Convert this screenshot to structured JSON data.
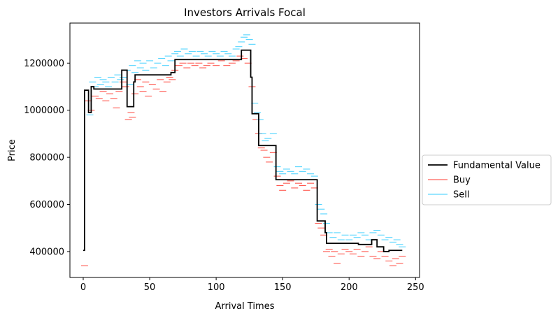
{
  "chart_data": {
    "type": "line",
    "title": "Investors Arrivals Focal",
    "xlabel": "Arrival Times",
    "ylabel": "Price",
    "xlim": [
      -10,
      253
    ],
    "ylim": [
      290000,
      1370000
    ],
    "x_ticks": [
      0,
      50,
      100,
      150,
      200,
      250
    ],
    "x_tick_labels": [
      "0",
      "50",
      "100",
      "150",
      "200",
      "250"
    ],
    "y_ticks": [
      400000,
      600000,
      800000,
      1000000,
      1200000
    ],
    "y_tick_labels": [
      "400000",
      "600000",
      "800000",
      "1000000",
      "1200000"
    ],
    "grid": false,
    "legend_position": "right, outside plot",
    "colors": {
      "fundamental": "#000000",
      "buy": "#ff3b30",
      "sell": "#33ccff"
    },
    "series": [
      {
        "name": "Fundamental Value",
        "kind": "step-line",
        "points": [
          [
            0,
            405000
          ],
          [
            1,
            1085000
          ],
          [
            3,
            1085000
          ],
          [
            4,
            990000
          ],
          [
            6,
            1100000
          ],
          [
            8,
            1090000
          ],
          [
            28,
            1090000
          ],
          [
            29,
            1170000
          ],
          [
            32,
            1170000
          ],
          [
            33,
            1015000
          ],
          [
            37,
            1015000
          ],
          [
            38,
            1120000
          ],
          [
            39,
            1150000
          ],
          [
            65,
            1150000
          ],
          [
            66,
            1160000
          ],
          [
            68,
            1160000
          ],
          [
            69,
            1215000
          ],
          [
            118,
            1215000
          ],
          [
            119,
            1255000
          ],
          [
            125,
            1255000
          ],
          [
            126,
            1140000
          ],
          [
            127,
            985000
          ],
          [
            131,
            985000
          ],
          [
            132,
            850000
          ],
          [
            144,
            850000
          ],
          [
            145,
            705000
          ],
          [
            175,
            705000
          ],
          [
            176,
            530000
          ],
          [
            181,
            530000
          ],
          [
            182,
            480000
          ],
          [
            183,
            435000
          ],
          [
            206,
            435000
          ],
          [
            207,
            430000
          ],
          [
            216,
            430000
          ],
          [
            217,
            450000
          ],
          [
            220,
            450000
          ],
          [
            221,
            420000
          ],
          [
            225,
            420000
          ],
          [
            226,
            400000
          ],
          [
            229,
            400000
          ],
          [
            230,
            405000
          ],
          [
            240,
            405000
          ]
        ]
      },
      {
        "name": "Buy",
        "kind": "dash-marks",
        "points": [
          [
            1,
            340000
          ],
          [
            4,
            1040000
          ],
          [
            6,
            1000000
          ],
          [
            9,
            1060000
          ],
          [
            12,
            1050000
          ],
          [
            15,
            1080000
          ],
          [
            17,
            1040000
          ],
          [
            20,
            1070000
          ],
          [
            23,
            1050000
          ],
          [
            25,
            1010000
          ],
          [
            27,
            1080000
          ],
          [
            30,
            1120000
          ],
          [
            32,
            1100000
          ],
          [
            34,
            960000
          ],
          [
            36,
            990000
          ],
          [
            37,
            970000
          ],
          [
            39,
            1070000
          ],
          [
            41,
            1130000
          ],
          [
            43,
            1100000
          ],
          [
            45,
            1080000
          ],
          [
            47,
            1120000
          ],
          [
            49,
            1060000
          ],
          [
            52,
            1110000
          ],
          [
            55,
            1090000
          ],
          [
            58,
            1130000
          ],
          [
            60,
            1080000
          ],
          [
            63,
            1120000
          ],
          [
            65,
            1140000
          ],
          [
            67,
            1130000
          ],
          [
            69,
            1170000
          ],
          [
            72,
            1190000
          ],
          [
            75,
            1200000
          ],
          [
            78,
            1180000
          ],
          [
            81,
            1200000
          ],
          [
            84,
            1190000
          ],
          [
            87,
            1200000
          ],
          [
            90,
            1180000
          ],
          [
            93,
            1190000
          ],
          [
            96,
            1200000
          ],
          [
            100,
            1190000
          ],
          [
            104,
            1210000
          ],
          [
            108,
            1190000
          ],
          [
            112,
            1200000
          ],
          [
            115,
            1210000
          ],
          [
            118,
            1230000
          ],
          [
            121,
            1220000
          ],
          [
            124,
            1200000
          ],
          [
            127,
            1100000
          ],
          [
            130,
            960000
          ],
          [
            132,
            900000
          ],
          [
            134,
            840000
          ],
          [
            136,
            830000
          ],
          [
            138,
            800000
          ],
          [
            140,
            780000
          ],
          [
            143,
            820000
          ],
          [
            146,
            720000
          ],
          [
            148,
            680000
          ],
          [
            150,
            660000
          ],
          [
            153,
            690000
          ],
          [
            156,
            700000
          ],
          [
            159,
            670000
          ],
          [
            162,
            690000
          ],
          [
            165,
            680000
          ],
          [
            168,
            660000
          ],
          [
            171,
            690000
          ],
          [
            174,
            670000
          ],
          [
            177,
            520000
          ],
          [
            179,
            500000
          ],
          [
            181,
            470000
          ],
          [
            183,
            400000
          ],
          [
            185,
            410000
          ],
          [
            187,
            380000
          ],
          [
            189,
            400000
          ],
          [
            191,
            350000
          ],
          [
            194,
            390000
          ],
          [
            197,
            410000
          ],
          [
            200,
            400000
          ],
          [
            203,
            390000
          ],
          [
            206,
            410000
          ],
          [
            209,
            380000
          ],
          [
            212,
            400000
          ],
          [
            215,
            420000
          ],
          [
            218,
            380000
          ],
          [
            221,
            370000
          ],
          [
            224,
            400000
          ],
          [
            227,
            380000
          ],
          [
            230,
            360000
          ],
          [
            233,
            340000
          ],
          [
            235,
            370000
          ],
          [
            238,
            350000
          ],
          [
            240,
            380000
          ]
        ]
      },
      {
        "name": "Sell",
        "kind": "dash-marks",
        "points": [
          [
            5,
            980000
          ],
          [
            7,
            1120000
          ],
          [
            9,
            1100000
          ],
          [
            11,
            1140000
          ],
          [
            13,
            1110000
          ],
          [
            15,
            1130000
          ],
          [
            17,
            1120000
          ],
          [
            19,
            1100000
          ],
          [
            21,
            1140000
          ],
          [
            24,
            1120000
          ],
          [
            26,
            1150000
          ],
          [
            28,
            1130000
          ],
          [
            30,
            1140000
          ],
          [
            33,
            1170000
          ],
          [
            35,
            1110000
          ],
          [
            37,
            1190000
          ],
          [
            39,
            1160000
          ],
          [
            41,
            1210000
          ],
          [
            43,
            1180000
          ],
          [
            45,
            1200000
          ],
          [
            47,
            1170000
          ],
          [
            50,
            1210000
          ],
          [
            53,
            1180000
          ],
          [
            56,
            1200000
          ],
          [
            59,
            1220000
          ],
          [
            62,
            1190000
          ],
          [
            64,
            1230000
          ],
          [
            66,
            1210000
          ],
          [
            69,
            1240000
          ],
          [
            71,
            1250000
          ],
          [
            73,
            1230000
          ],
          [
            76,
            1260000
          ],
          [
            79,
            1240000
          ],
          [
            82,
            1250000
          ],
          [
            85,
            1230000
          ],
          [
            88,
            1250000
          ],
          [
            91,
            1240000
          ],
          [
            94,
            1230000
          ],
          [
            97,
            1250000
          ],
          [
            100,
            1240000
          ],
          [
            103,
            1230000
          ],
          [
            106,
            1250000
          ],
          [
            109,
            1240000
          ],
          [
            112,
            1230000
          ],
          [
            115,
            1260000
          ],
          [
            117,
            1270000
          ],
          [
            119,
            1290000
          ],
          [
            121,
            1310000
          ],
          [
            123,
            1320000
          ],
          [
            125,
            1300000
          ],
          [
            127,
            1280000
          ],
          [
            129,
            1030000
          ],
          [
            131,
            990000
          ],
          [
            133,
            960000
          ],
          [
            135,
            900000
          ],
          [
            137,
            870000
          ],
          [
            139,
            880000
          ],
          [
            141,
            850000
          ],
          [
            143,
            900000
          ],
          [
            146,
            760000
          ],
          [
            148,
            740000
          ],
          [
            150,
            730000
          ],
          [
            153,
            750000
          ],
          [
            156,
            740000
          ],
          [
            159,
            730000
          ],
          [
            162,
            760000
          ],
          [
            165,
            740000
          ],
          [
            168,
            750000
          ],
          [
            171,
            730000
          ],
          [
            174,
            720000
          ],
          [
            177,
            600000
          ],
          [
            179,
            580000
          ],
          [
            181,
            560000
          ],
          [
            183,
            520000
          ],
          [
            185,
            480000
          ],
          [
            188,
            460000
          ],
          [
            191,
            480000
          ],
          [
            194,
            450000
          ],
          [
            197,
            470000
          ],
          [
            200,
            450000
          ],
          [
            203,
            470000
          ],
          [
            206,
            460000
          ],
          [
            209,
            480000
          ],
          [
            212,
            470000
          ],
          [
            215,
            450000
          ],
          [
            218,
            480000
          ],
          [
            221,
            490000
          ],
          [
            224,
            470000
          ],
          [
            227,
            450000
          ],
          [
            230,
            460000
          ],
          [
            233,
            440000
          ],
          [
            236,
            450000
          ],
          [
            238,
            430000
          ],
          [
            240,
            420000
          ]
        ]
      }
    ]
  }
}
